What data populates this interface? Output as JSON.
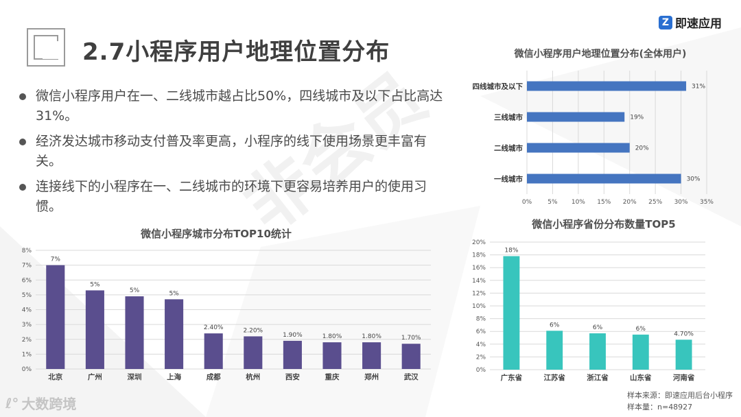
{
  "header": {
    "title": "2.7小程序用户地理位置分布",
    "brand": "即速应用",
    "brand_mark": "Z"
  },
  "bullets": [
    "微信小程序用户在一、二线城市越占比50%，四线城市及以下占比高达31%。",
    "经济发达城市移动支付普及率更高，小程序的线下使用场景更丰富有关。",
    "连接线下的小程序在一、二线城市的环境下更容易培养用户的使用习惯。"
  ],
  "watermark": "非会员",
  "footer": {
    "logo_text": "大数跨境",
    "source": "样本来源：即速应用后台小程序",
    "sample": "样本量：n=48927"
  },
  "colors": {
    "purple": "#5a4e8e",
    "blue": "#4575c0",
    "teal": "#38c5bd",
    "grid": "#d9d9d9"
  },
  "chart_data": [
    {
      "type": "bar",
      "title": "微信小程序城市分布TOP10统计",
      "categories": [
        "北京",
        "广州",
        "深圳",
        "上海",
        "成都",
        "杭州",
        "西安",
        "重庆",
        "郑州",
        "武汉"
      ],
      "values": [
        7,
        5.3,
        4.9,
        4.7,
        2.4,
        2.2,
        1.9,
        1.8,
        1.8,
        1.7
      ],
      "data_labels": [
        "7%",
        "5%",
        "5%",
        "5%",
        "2.40%",
        "2.20%",
        "1.90%",
        "1.80%",
        "1.80%",
        "1.70%"
      ],
      "ylim": [
        0,
        8
      ],
      "yticks": [
        "0%",
        "1%",
        "2%",
        "3%",
        "4%",
        "5%",
        "6%",
        "7%",
        "8%"
      ],
      "grid": true
    },
    {
      "type": "bar",
      "orientation": "horizontal",
      "title": "微信小程序用户地理位置分布(全体用户)",
      "categories": [
        "四线城市及以下",
        "三线城市",
        "二线城市",
        "一线城市"
      ],
      "values": [
        31,
        19,
        20,
        30
      ],
      "data_labels": [
        "31%",
        "19%",
        "20%",
        "30%"
      ],
      "xlim": [
        0,
        35
      ],
      "xticks": [
        "0%",
        "5%",
        "10%",
        "15%",
        "20%",
        "25%",
        "30%",
        "35%"
      ],
      "grid": true
    },
    {
      "type": "bar",
      "title": "微信小程序省份分布数量TOP5",
      "categories": [
        "广东省",
        "江苏省",
        "浙江省",
        "山东省",
        "河南省"
      ],
      "values": [
        17.8,
        6.1,
        5.7,
        5.5,
        4.7
      ],
      "data_labels": [
        "18%",
        "6%",
        "6%",
        "6%",
        "4.70%"
      ],
      "ylim": [
        0,
        20
      ],
      "yticks": [
        "0%",
        "2%",
        "4%",
        "6%",
        "8%",
        "10%",
        "12%",
        "14%",
        "16%",
        "18%",
        "20%"
      ],
      "grid": true
    }
  ]
}
